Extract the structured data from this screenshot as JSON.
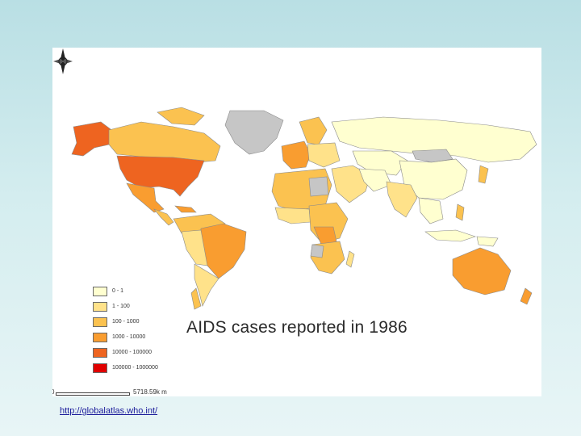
{
  "map": {
    "title": "AIDS cases reported in 1986",
    "legend": [
      {
        "label": "0 - 1",
        "color": "#ffffd0"
      },
      {
        "label": "1 - 100",
        "color": "#ffe28a"
      },
      {
        "label": "100 - 1000",
        "color": "#fbc250"
      },
      {
        "label": "1000 - 10000",
        "color": "#f99d30"
      },
      {
        "label": "10000 - 100000",
        "color": "#ee6420"
      },
      {
        "label": "100000 - 1000000",
        "color": "#e00000"
      }
    ],
    "nodata_color": "#c6c6c6",
    "scale": {
      "zero": "0",
      "end": "5718.59k m"
    }
  },
  "source_link": "http://globalatlas.who.int/"
}
